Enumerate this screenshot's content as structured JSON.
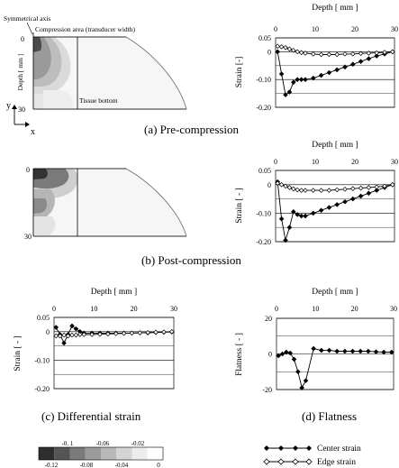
{
  "panels": {
    "a": {
      "caption": "(a) Pre-compression"
    },
    "b": {
      "caption": "(b) Post-compression"
    },
    "c": {
      "caption": "(c) Differential strain"
    },
    "d": {
      "caption": "(d) Flatness"
    }
  },
  "field": {
    "symmetrical_axis": "Symmetrical axis",
    "compression_area": "Compression area (transducer width)",
    "tissue_bottom": "Tissue bottom",
    "depth_label": "Depth [ mm ]",
    "tick_top": "0",
    "tick_bottom": "30",
    "axis_y": "y",
    "axis_x": "x"
  },
  "colorbar": {
    "top_ticks": [
      "-0. 1",
      "-0.06",
      "-0.02"
    ],
    "bottom_ticks": [
      "-0.12",
      "-0.08",
      "-0.04",
      "0"
    ],
    "colors": [
      "#2e2e2e",
      "#555555",
      "#7a7a7a",
      "#9a9a9a",
      "#b8b8b8",
      "#d4d4d4",
      "#ededed",
      "#ffffff"
    ]
  },
  "legend": {
    "center": "Center strain",
    "edge": "Edge strain"
  },
  "chart_data": [
    {
      "id": "a",
      "type": "line",
      "xlabel": "Depth [ mm ]",
      "ylabel": "Strain [-]",
      "x_ticks": [
        "0",
        "10",
        "20",
        "30"
      ],
      "y_ticks": [
        "0.05",
        "0",
        "-0.10",
        "-0.20"
      ],
      "xlim": [
        0,
        30
      ],
      "ylim": [
        -0.2,
        0.05
      ],
      "series": [
        {
          "name": "Center strain",
          "x": [
            0.5,
            1.5,
            2.5,
            3.5,
            4.5,
            5.5,
            6.5,
            7.5,
            9.5,
            11.5,
            13.5,
            15.5,
            17.5,
            19.5,
            21.5,
            23.5,
            25.5,
            27.5,
            29.5
          ],
          "y": [
            0.0,
            -0.08,
            -0.155,
            -0.145,
            -0.11,
            -0.1,
            -0.1,
            -0.1,
            -0.095,
            -0.085,
            -0.075,
            -0.065,
            -0.055,
            -0.045,
            -0.035,
            -0.025,
            -0.015,
            -0.008,
            0.0
          ]
        },
        {
          "name": "Edge strain",
          "x": [
            0.5,
            1.5,
            2.5,
            3.5,
            4.5,
            5.5,
            6.5,
            7.5,
            9.5,
            11.5,
            13.5,
            15.5,
            17.5,
            19.5,
            21.5,
            23.5,
            25.5,
            27.5,
            29.5
          ],
          "y": [
            0.02,
            0.018,
            0.015,
            0.01,
            0.005,
            0.0,
            -0.003,
            -0.005,
            -0.008,
            -0.01,
            -0.01,
            -0.01,
            -0.008,
            -0.008,
            -0.006,
            -0.005,
            -0.004,
            -0.002,
            0.0
          ]
        }
      ]
    },
    {
      "id": "b",
      "type": "line",
      "xlabel": "Depth [ mm ]",
      "ylabel": "Strain [ - ]",
      "x_ticks": [
        "0",
        "10",
        "20",
        "30"
      ],
      "y_ticks": [
        "0.05",
        "0",
        "-0.10",
        "-0.20"
      ],
      "xlim": [
        0,
        30
      ],
      "ylim": [
        -0.2,
        0.05
      ],
      "series": [
        {
          "name": "Center strain",
          "x": [
            0.5,
            1.5,
            2.5,
            3.5,
            4.5,
            5.5,
            6.5,
            7.5,
            9.5,
            11.5,
            13.5,
            15.5,
            17.5,
            19.5,
            21.5,
            23.5,
            25.5,
            27.5,
            29.5
          ],
          "y": [
            0.01,
            -0.12,
            -0.195,
            -0.15,
            -0.095,
            -0.105,
            -0.11,
            -0.11,
            -0.1,
            -0.09,
            -0.08,
            -0.07,
            -0.06,
            -0.05,
            -0.04,
            -0.03,
            -0.02,
            -0.01,
            0.0
          ]
        },
        {
          "name": "Edge strain",
          "x": [
            0.5,
            1.5,
            2.5,
            3.5,
            4.5,
            5.5,
            6.5,
            7.5,
            9.5,
            11.5,
            13.5,
            15.5,
            17.5,
            19.5,
            21.5,
            23.5,
            25.5,
            27.5,
            29.5
          ],
          "y": [
            0.005,
            0.0,
            -0.005,
            -0.01,
            -0.015,
            -0.018,
            -0.02,
            -0.02,
            -0.02,
            -0.02,
            -0.02,
            -0.018,
            -0.016,
            -0.014,
            -0.012,
            -0.01,
            -0.008,
            -0.005,
            0.0
          ]
        }
      ]
    },
    {
      "id": "c",
      "type": "line",
      "xlabel": "Depth [ mm ]",
      "ylabel": "Strain [ - ]",
      "x_ticks": [
        "0",
        "10",
        "20",
        "30"
      ],
      "y_ticks": [
        "0.05",
        "0",
        "-0.10",
        "-0.20"
      ],
      "xlim": [
        0,
        30
      ],
      "ylim": [
        -0.2,
        0.05
      ],
      "series": [
        {
          "name": "Center strain",
          "x": [
            0.5,
            1.5,
            2.5,
            3.5,
            4.5,
            5.5,
            6.5,
            7.5,
            9.5,
            11.5,
            13.5,
            15.5,
            17.5,
            19.5,
            21.5,
            23.5,
            25.5,
            27.5,
            29.5
          ],
          "y": [
            0.015,
            -0.01,
            -0.04,
            -0.01,
            0.02,
            0.01,
            0.0,
            -0.005,
            -0.005,
            -0.005,
            -0.005,
            -0.005,
            -0.005,
            -0.005,
            -0.004,
            -0.004,
            -0.003,
            -0.002,
            -0.001
          ]
        },
        {
          "name": "Edge strain",
          "x": [
            0.5,
            1.5,
            2.5,
            3.5,
            4.5,
            5.5,
            6.5,
            7.5,
            9.5,
            11.5,
            13.5,
            15.5,
            17.5,
            19.5,
            21.5,
            23.5,
            25.5,
            27.5,
            29.5
          ],
          "y": [
            -0.015,
            -0.015,
            -0.012,
            -0.015,
            -0.012,
            -0.012,
            -0.01,
            -0.01,
            -0.01,
            -0.009,
            -0.008,
            -0.007,
            -0.006,
            -0.005,
            -0.004,
            -0.003,
            -0.002,
            -0.001,
            0.0
          ]
        }
      ]
    },
    {
      "id": "d",
      "type": "line",
      "xlabel": "Depth [ mm ]",
      "ylabel": "Flatness [ - ]",
      "x_ticks": [
        "0",
        "10",
        "20",
        "30"
      ],
      "y_ticks": [
        "20",
        "0",
        "-20"
      ],
      "xlim": [
        0,
        30
      ],
      "ylim": [
        -20,
        20
      ],
      "series": [
        {
          "name": "Flatness",
          "x": [
            0.5,
            1.5,
            2.5,
            3.5,
            4.5,
            5.5,
            6.5,
            7.5,
            9.5,
            11.5,
            13.5,
            15.5,
            17.5,
            19.5,
            21.5,
            23.5,
            25.5,
            27.5,
            29.5
          ],
          "y": [
            -1,
            0,
            1,
            0.5,
            -3,
            -10,
            -19,
            -15,
            3,
            2,
            2,
            1.5,
            1.5,
            1.5,
            1.5,
            1.5,
            1.2,
            1.0,
            1.0
          ]
        }
      ]
    }
  ]
}
